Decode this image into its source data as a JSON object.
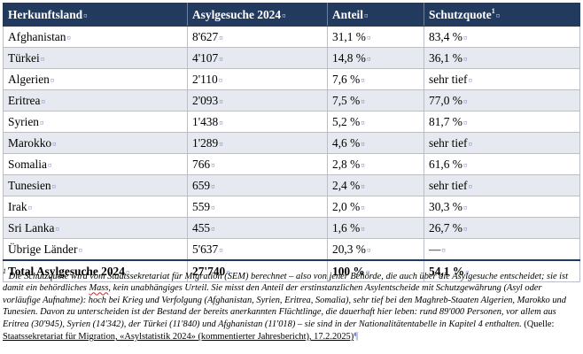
{
  "table": {
    "headers": {
      "country": "Herkunftsland",
      "applications": "Asylgesuche 2024",
      "share": "Anteil",
      "protection": "Schutzquote",
      "protection_sup": "1"
    },
    "cell_marker": "¤",
    "rows": [
      {
        "country": "Afghanistan",
        "applications": "8'627",
        "share": "31,1 %",
        "protection": "83,4 %"
      },
      {
        "country": "Türkei",
        "applications": "4'107",
        "share": "14,8 %",
        "protection": "36,1 %"
      },
      {
        "country": "Algerien",
        "applications": "2'110",
        "share": "7,6 %",
        "protection": "sehr tief"
      },
      {
        "country": "Eritrea",
        "applications": "2'093",
        "share": "7,5 %",
        "protection": "77,0 %"
      },
      {
        "country": "Syrien",
        "applications": "1'438",
        "share": "5,2 %",
        "protection": "81,7 %"
      },
      {
        "country": "Marokko",
        "applications": "1'289",
        "share": "4,6 %",
        "protection": "sehr tief"
      },
      {
        "country": "Somalia",
        "applications": "766",
        "share": "2,8 %",
        "protection": "61,6 %"
      },
      {
        "country": "Tunesien",
        "applications": "659",
        "share": "2,4 %",
        "protection": "sehr tief"
      },
      {
        "country": "Irak",
        "applications": "559",
        "share": "2,0 %",
        "protection": "30,3 %"
      },
      {
        "country": "Sri Lanka",
        "applications": "455",
        "share": "1,6 %",
        "protection": "26,7 %"
      },
      {
        "country": "Übrige Länder",
        "applications": "5'637",
        "share": "20,3 %",
        "protection": "—"
      }
    ],
    "total": {
      "country": "Total Asylgesuche 2024",
      "applications": "27'740",
      "share": "100 %",
      "protection": "54,1 %"
    }
  },
  "footnote": {
    "marker": "1",
    "part1": " Die Schutzquote wird vom Staatssekretariat für Migration (SEM) berechnet – also von jener Behörde, die auch über die Asylgesuche entscheidet; sie ist damit ein behördliches ",
    "flagged_word": "Mass",
    "part2": ", kein unabhängiges Urteil. Sie misst den Anteil der erstinstanzlichen Asylentscheide mit Schutzgewährung (Asyl oder vorläufige Aufnahme): hoch bei Krieg und Verfolgung (Afghanistan, Syrien, Eritrea, Somalia), sehr tief bei den Maghreb-Staaten Algerien, Marokko und Tunesien. Davon zu unterscheiden ist der Bestand der bereits anerkannten Flüchtlinge, die dauerhaft hier leben: rund 89'000 Personen, vor allem aus Eritrea (30'945), Syrien (14'342), der Türkei (11'840) und Afghanistan (11'018) – sie sind in der Nationalitätentabelle in Kapitel 4 enthalten.",
    "quelle": " (Quelle:",
    "source": "Staatssekretariat für Migration, «Asylstatistik 2024» (kommentierter Jahresbericht), 17.2.2025)",
    "pilcrow": "¶"
  }
}
